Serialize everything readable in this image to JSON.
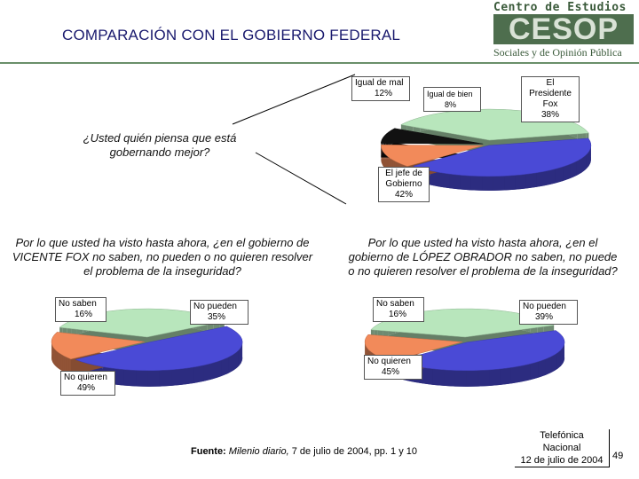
{
  "header": {
    "title": "COMPARACIÓN CON EL GOBIERNO FEDERAL",
    "logo_top": "Centro de Estudios",
    "logo_mid": "CESOP",
    "logo_bottom": "Sociales y de Opinión Pública"
  },
  "questions": {
    "q1": "¿Usted quién piensa que está gobernando mejor?",
    "q2": "Por lo que usted ha visto hasta ahora, ¿en el gobierno de VICENTE FOX no saben, no pueden o no quieren resolver el problema de la inseguridad?",
    "q3": "Por lo que usted ha visto hasta ahora, ¿en el gobierno de LÓPEZ OBRADOR no saben, no puede o no quieren resolver el problema de la inseguridad?"
  },
  "chart_data": [
    {
      "type": "pie",
      "title": "¿Usted quién piensa que está gobernando mejor?",
      "slices": [
        {
          "label": "El Presidente Fox",
          "value": 38,
          "value_label": "38%",
          "color": "#b8e6bc"
        },
        {
          "label": "El jefe de Gobierno",
          "value": 42,
          "value_label": "42%",
          "color": "#4a4ad6"
        },
        {
          "label": "Igual de mal",
          "value": 12,
          "value_label": "12%",
          "color": "#f28a5a"
        },
        {
          "label": "Igual de bien",
          "value": 8,
          "value_label": "8%",
          "color": "#111111"
        }
      ]
    },
    {
      "type": "pie",
      "title": "Por lo que usted ha visto hasta ahora, ¿en el gobierno de VICENTE FOX no saben, no pueden o no quieren resolver el problema de la inseguridad?",
      "slices": [
        {
          "label": "No pueden",
          "value": 35,
          "value_label": "35%",
          "color": "#b8e6bc"
        },
        {
          "label": "No quieren",
          "value": 49,
          "value_label": "49%",
          "color": "#4a4ad6"
        },
        {
          "label": "No saben",
          "value": 16,
          "value_label": "16%",
          "color": "#f28a5a"
        }
      ]
    },
    {
      "type": "pie",
      "title": "Por lo que usted ha visto hasta ahora, ¿en el gobierno de LÓPEZ OBRADOR no saben, no puede o no quieren resolver el problema de la inseguridad?",
      "slices": [
        {
          "label": "No pueden",
          "value": 39,
          "value_label": "39%",
          "color": "#b8e6bc"
        },
        {
          "label": "No quieren",
          "value": 45,
          "value_label": "45%",
          "color": "#4a4ad6"
        },
        {
          "label": "No saben",
          "value": 16,
          "value_label": "16%",
          "color": "#f28a5a"
        }
      ]
    }
  ],
  "footer": {
    "source_label": "Fuente:",
    "source_italic": "Milenio diario,",
    "source_rest": " 7 de julio de 2004, pp. 1 y 10",
    "stamp_line1": "Telefónica",
    "stamp_line2": "Nacional",
    "stamp_line3": "12 de julio de 2004",
    "page_number": "49"
  }
}
